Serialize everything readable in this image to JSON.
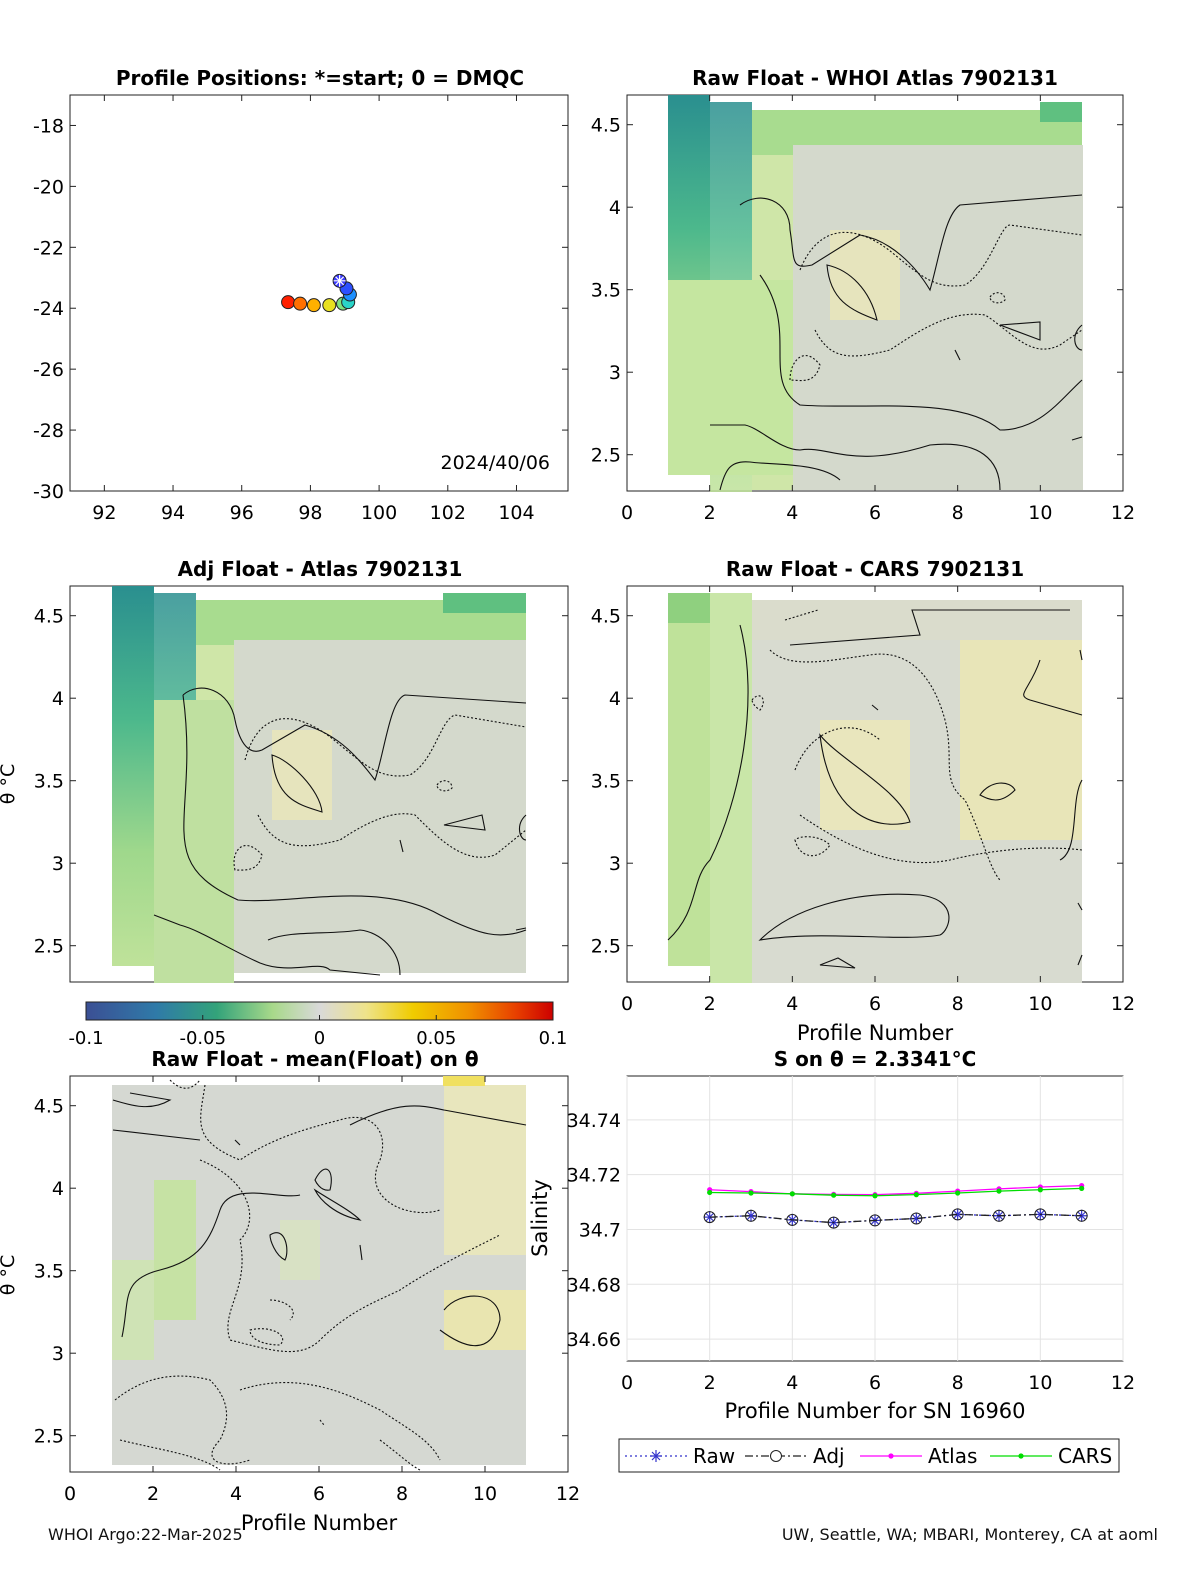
{
  "footer": {
    "left": "WHOI Argo:22-Mar-2025",
    "right": "UW, Seattle, WA; MBARI, Monterey, CA at aoml"
  },
  "colorbar": {
    "ticks": [
      "-0.1",
      "-0.05",
      "0",
      "0.05",
      "0.1"
    ],
    "range": [
      -0.1,
      0.1
    ]
  },
  "chart_data": [
    {
      "id": "positions",
      "type": "scatter",
      "title": "Profile Positions: *=start; 0 = DMQC",
      "xlim": [
        91,
        105.5
      ],
      "ylim": [
        -30,
        -17
      ],
      "xticks": [
        "92",
        "94",
        "96",
        "98",
        "100",
        "102",
        "104"
      ],
      "yticks": [
        "-18",
        "-20",
        "-22",
        "-24",
        "-26",
        "-28",
        "-30"
      ],
      "annotation": "2024/40/06",
      "points": [
        {
          "lon": 98.85,
          "lat": -23.1,
          "marker": "start"
        },
        {
          "lon": 99.05,
          "lat": -23.35
        },
        {
          "lon": 99.15,
          "lat": -23.55
        },
        {
          "lon": 99.1,
          "lat": -23.8
        },
        {
          "lon": 98.95,
          "lat": -23.85
        },
        {
          "lon": 98.55,
          "lat": -23.9
        },
        {
          "lon": 98.1,
          "lat": -23.9
        },
        {
          "lon": 97.7,
          "lat": -23.85
        },
        {
          "lon": 97.35,
          "lat": -23.8
        }
      ]
    },
    {
      "id": "raw-whoi",
      "type": "heatmap",
      "title": "Raw Float - WHOI Atlas  7902131",
      "xlim": [
        0,
        12
      ],
      "ylim": [
        2.28,
        4.68
      ],
      "xticks": [
        "0",
        "2",
        "4",
        "6",
        "8",
        "10",
        "12"
      ],
      "yticks": [
        "2.5",
        "3",
        "3.5",
        "4",
        "4.5"
      ],
      "ylabel": "",
      "xlabel": ""
    },
    {
      "id": "adj-atlas",
      "type": "heatmap",
      "title": "Adj Float - Atlas  7902131",
      "xlim": [
        0,
        11
      ],
      "ylim": [
        2.28,
        4.68
      ],
      "yticks": [
        "2.5",
        "3",
        "3.5",
        "4",
        "4.5"
      ],
      "ylabel": "θ °C"
    },
    {
      "id": "raw-cars",
      "type": "heatmap",
      "title": "Raw Float - CARS  7902131",
      "xlim": [
        0,
        12
      ],
      "ylim": [
        2.28,
        4.68
      ],
      "xticks": [
        "0",
        "2",
        "4",
        "6",
        "8",
        "10",
        "12"
      ],
      "yticks": [
        "2.5",
        "3",
        "3.5",
        "4",
        "4.5"
      ],
      "xlabel": "Profile Number"
    },
    {
      "id": "raw-mean",
      "type": "heatmap",
      "title": "Raw Float - mean(Float) on θ",
      "xlim": [
        0,
        12
      ],
      "ylim": [
        2.28,
        4.68
      ],
      "xticks": [
        "0",
        "2",
        "4",
        "6",
        "8",
        "10",
        "12"
      ],
      "yticks": [
        "2.5",
        "3",
        "3.5",
        "4",
        "4.5"
      ],
      "ylabel": "θ °C",
      "xlabel": "Profile Number"
    },
    {
      "id": "salinity",
      "type": "line",
      "title": "S on θ = 2.3341°C",
      "xlabel": "Profile Number for SN 16960",
      "ylabel": "Salinity",
      "xlim": [
        0,
        12
      ],
      "ylim": [
        34.652,
        34.756
      ],
      "xticks": [
        "0",
        "2",
        "4",
        "6",
        "8",
        "10",
        "12"
      ],
      "yticks": [
        "34.66",
        "34.68",
        "34.7",
        "34.72",
        "34.74"
      ],
      "grid": true,
      "legend_position": "bottom",
      "x": [
        2,
        3,
        4,
        5,
        6,
        7,
        8,
        9,
        10,
        11
      ],
      "series": [
        {
          "name": "Raw",
          "color": "#3333cc",
          "values": [
            34.7045,
            34.705,
            34.7035,
            34.7025,
            34.7033,
            34.704,
            34.7055,
            34.705,
            34.7055,
            34.705
          ]
        },
        {
          "name": "Adj",
          "color": "#222222",
          "values": [
            34.7045,
            34.705,
            34.7035,
            34.7025,
            34.7033,
            34.704,
            34.7055,
            34.705,
            34.7055,
            34.705
          ]
        },
        {
          "name": "Atlas",
          "color": "#ff00ff",
          "values": [
            34.7145,
            34.7138,
            34.713,
            34.7128,
            34.7127,
            34.7132,
            34.714,
            34.7148,
            34.7155,
            34.716
          ]
        },
        {
          "name": "CARS",
          "color": "#00dd00",
          "values": [
            34.7135,
            34.7133,
            34.713,
            34.7125,
            34.7123,
            34.7127,
            34.7133,
            34.714,
            34.7145,
            34.715
          ]
        }
      ]
    }
  ]
}
